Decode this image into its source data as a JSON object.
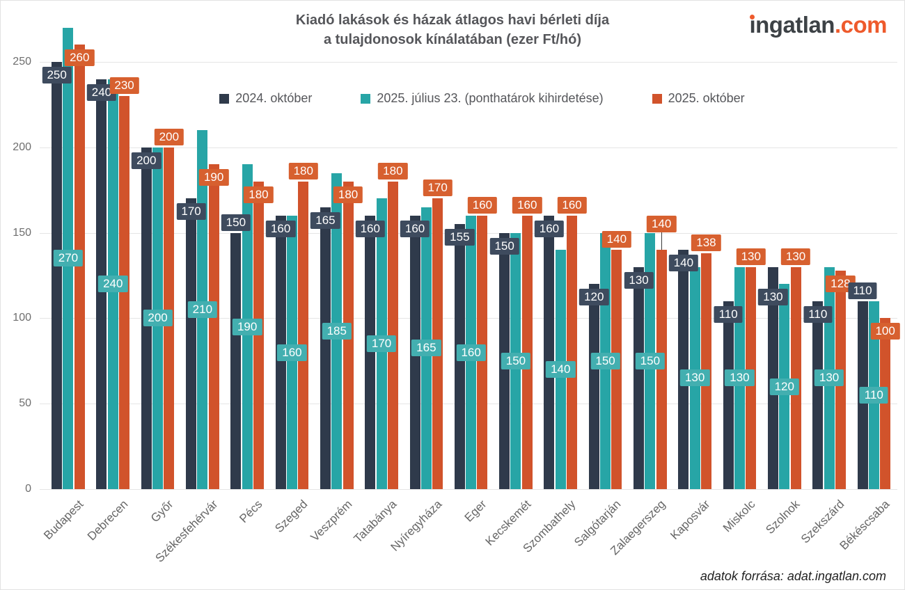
{
  "title": {
    "line1": "Kiadó lakások és házak átlagos havi bérleti díja",
    "line2": "a tulajdonosok kínálatában (ezer Ft/hó)"
  },
  "logo": {
    "name": "ingatlan",
    "tld": ".com",
    "brand_dark": "#3d4246",
    "brand_orange": "#ee5a2c"
  },
  "footer": {
    "source": "adatok forrása: adat.ingatlan.com"
  },
  "chart_data": {
    "type": "bar",
    "title": "Kiadó lakások és házak átlagos havi bérleti díja a tulajdonosok kínálatában (ezer Ft/hó)",
    "xlabel": "",
    "ylabel": "",
    "ylim": [
      0,
      250
    ],
    "yticks": [
      0,
      50,
      100,
      150,
      200,
      250
    ],
    "grid": true,
    "legend_position": "top",
    "categories": [
      "Budapest",
      "Debrecen",
      "Győr",
      "Székesfehérvár",
      "Pécs",
      "Szeged",
      "Veszprém",
      "Tatabánya",
      "Nyíregyháza",
      "Eger",
      "Kecskemét",
      "Szombathely",
      "Salgótarján",
      "Zalaegerszeg",
      "Kaposvár",
      "Miskolc",
      "Szolnok",
      "Szekszárd",
      "Békéscsaba"
    ],
    "series": [
      {
        "name": "2024. október",
        "color": "#2f3a4b",
        "label_bg": "#3e4b5e",
        "values": [
          250,
          240,
          200,
          170,
          150,
          160,
          165,
          160,
          160,
          155,
          150,
          160,
          120,
          130,
          140,
          110,
          130,
          110,
          110
        ],
        "label_pos": [
          "in",
          "in",
          "in",
          "in",
          "above",
          "in",
          "in",
          "in",
          "in",
          "in",
          "in",
          "in",
          "in",
          "in",
          "in",
          "in",
          "in2",
          "in",
          "above"
        ]
      },
      {
        "name": "2025. július 23. (ponthatárok kihirdetése)",
        "color": "#27a5a6",
        "label_bg": "#43afb0",
        "values": [
          270,
          240,
          200,
          210,
          190,
          160,
          185,
          170,
          165,
          160,
          150,
          140,
          150,
          150,
          130,
          130,
          120,
          130,
          110
        ],
        "label_pos": [
          "mid",
          "mid",
          "mid",
          "mid",
          "mid",
          "mid",
          "mid",
          "mid",
          "mid",
          "mid",
          "mid",
          "mid",
          "mid",
          "mid",
          "mid",
          "mid",
          "mid",
          "mid",
          "mid"
        ]
      },
      {
        "name": "2025. október",
        "color": "#d1532b",
        "label_bg": "#d7602f",
        "values": [
          260,
          230,
          200,
          190,
          180,
          180,
          180,
          180,
          170,
          160,
          160,
          160,
          140,
          140,
          138,
          130,
          130,
          128,
          100
        ],
        "label_pos": [
          "in",
          "above",
          "above",
          "in",
          "in",
          "above",
          "in",
          "above",
          "above",
          "above",
          "above",
          "above",
          "above",
          "raised",
          "above",
          "above",
          "above",
          "in",
          "in"
        ]
      }
    ]
  }
}
